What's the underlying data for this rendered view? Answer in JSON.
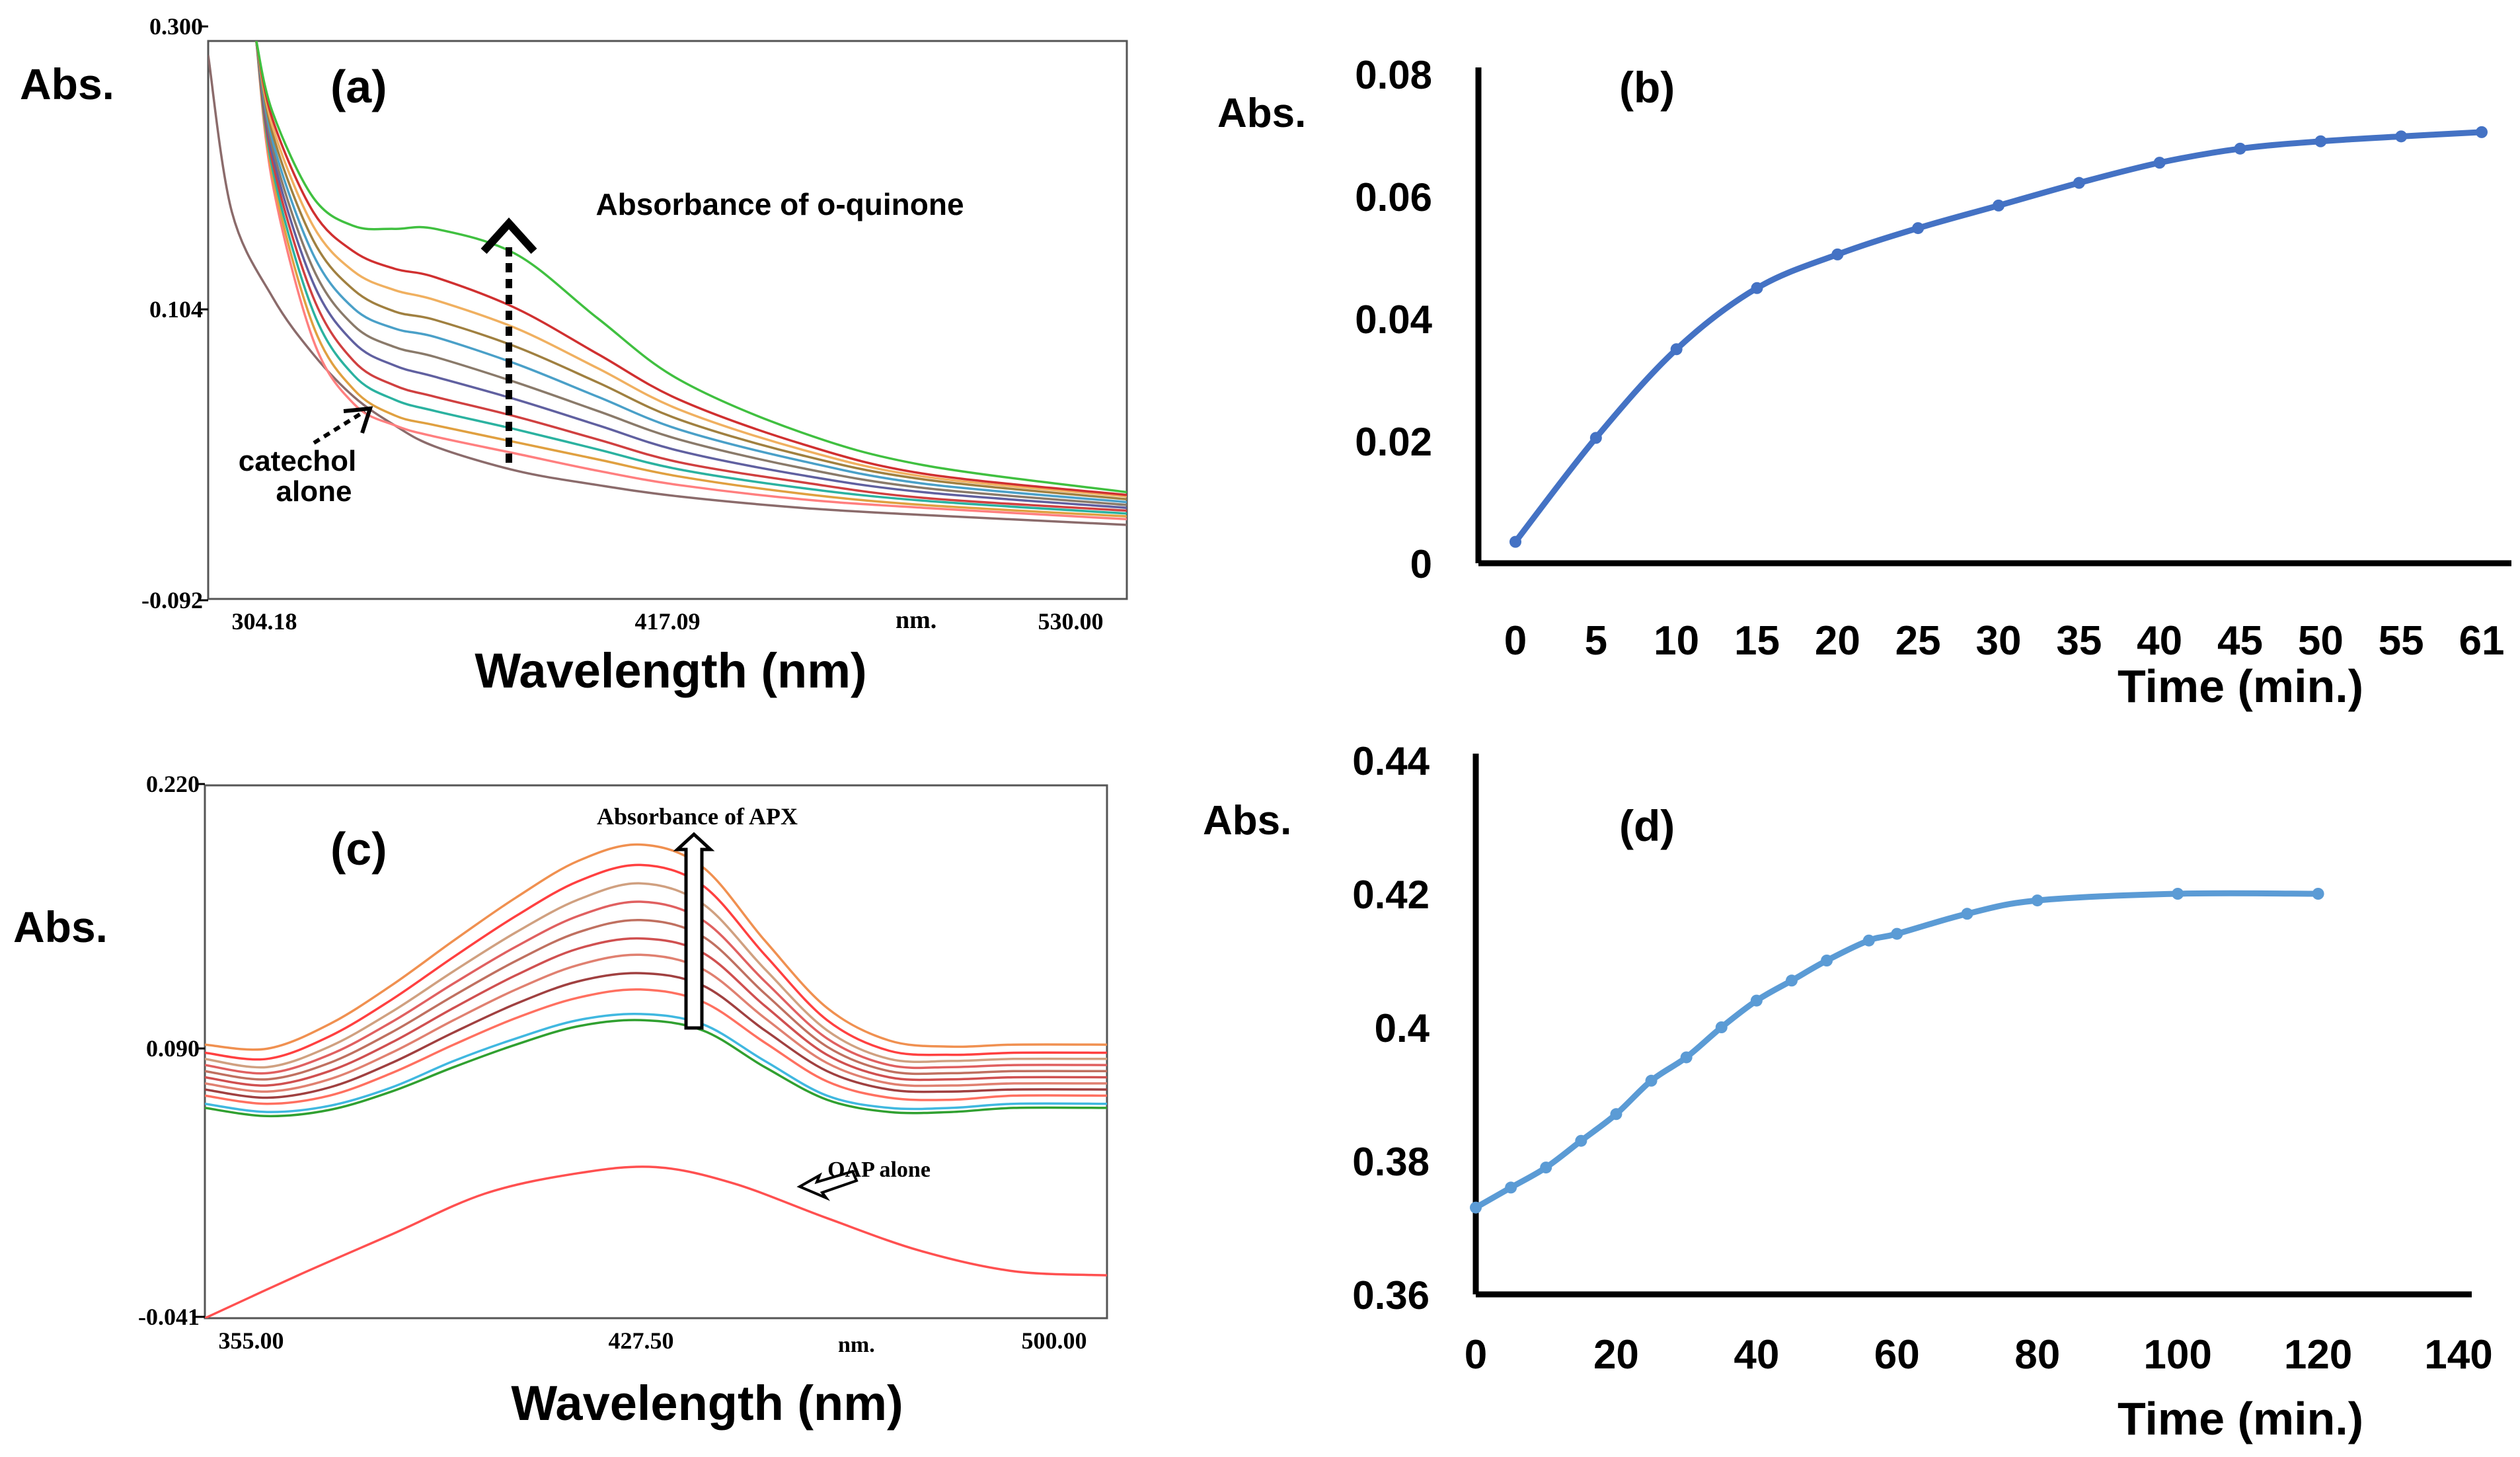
{
  "panels": {
    "a": {
      "label": "(a)",
      "ylabel": "Abs.",
      "xlabel": "Wavelength (nm)",
      "yticks": [
        "0.300",
        "0.104",
        "-0.092"
      ],
      "xticks": [
        "304.18",
        "417.09",
        "530.00"
      ],
      "unit": "nm.",
      "annotation": "Absorbance of o-quinone",
      "note_line1": "catechol",
      "note_line2": "alone"
    },
    "c": {
      "label": "(c)",
      "ylabel": "Abs.",
      "xlabel": "Wavelength (nm)",
      "yticks": [
        "0.220",
        "0.090",
        "-0.041"
      ],
      "xticks": [
        "355.00",
        "427.50",
        "500.00"
      ],
      "unit": "nm.",
      "annotation": "Absorbance of APX",
      "note": "OAP alone"
    }
  },
  "chart_data": [
    {
      "id": "a",
      "type": "line",
      "title": "(a)",
      "xlabel": "Wavelength (nm)",
      "ylabel": "Abs.",
      "xlim": [
        304.18,
        530.0
      ],
      "ylim": [
        -0.092,
        0.3
      ],
      "series": [
        {
          "name": "catechol alone",
          "color": "#8b6b6b",
          "x": [
            304.18,
            310,
            320,
            330,
            340,
            350,
            360,
            380,
            400,
            420,
            450,
            480,
            530
          ],
          "y": [
            0.29,
            0.18,
            0.12,
            0.08,
            0.05,
            0.03,
            0.015,
            -0.002,
            -0.012,
            -0.02,
            -0.028,
            -0.033,
            -0.04
          ]
        },
        {
          "color": "#ff7f7f",
          "x": [
            316,
            320,
            330,
            340,
            350,
            360,
            380,
            400,
            420,
            450,
            480,
            530
          ],
          "y": [
            0.3,
            0.2,
            0.09,
            0.045,
            0.03,
            0.022,
            0.01,
            -0.002,
            -0.012,
            -0.022,
            -0.028,
            -0.036
          ]
        },
        {
          "color": "#e0a040",
          "x": [
            316,
            320,
            330,
            340,
            350,
            360,
            380,
            400,
            420,
            450,
            480,
            530
          ],
          "y": [
            0.3,
            0.205,
            0.1,
            0.055,
            0.037,
            0.03,
            0.018,
            0.006,
            -0.006,
            -0.018,
            -0.026,
            -0.034
          ]
        },
        {
          "color": "#2bb2a0",
          "x": [
            316,
            320,
            330,
            340,
            350,
            360,
            380,
            400,
            420,
            450,
            480,
            530
          ],
          "y": [
            0.3,
            0.21,
            0.11,
            0.065,
            0.048,
            0.04,
            0.027,
            0.013,
            -0.001,
            -0.014,
            -0.023,
            -0.032
          ]
        },
        {
          "color": "#d04040",
          "x": [
            316,
            320,
            330,
            340,
            350,
            360,
            380,
            400,
            420,
            450,
            480,
            530
          ],
          "y": [
            0.3,
            0.215,
            0.12,
            0.075,
            0.058,
            0.05,
            0.036,
            0.02,
            0.004,
            -0.01,
            -0.021,
            -0.03
          ]
        },
        {
          "color": "#6060a0",
          "x": [
            316,
            320,
            330,
            340,
            350,
            360,
            380,
            400,
            420,
            450,
            480,
            530
          ],
          "y": [
            0.3,
            0.22,
            0.13,
            0.088,
            0.072,
            0.064,
            0.048,
            0.03,
            0.012,
            -0.005,
            -0.017,
            -0.028
          ]
        },
        {
          "color": "#8a7a6a",
          "x": [
            316,
            320,
            330,
            340,
            350,
            360,
            380,
            400,
            420,
            450,
            480,
            530
          ],
          "y": [
            0.3,
            0.225,
            0.14,
            0.1,
            0.085,
            0.078,
            0.06,
            0.04,
            0.02,
            0.0,
            -0.014,
            -0.026
          ]
        },
        {
          "color": "#4aa0c8",
          "x": [
            316,
            320,
            330,
            340,
            350,
            360,
            380,
            400,
            420,
            450,
            480,
            530
          ],
          "y": [
            0.3,
            0.23,
            0.15,
            0.112,
            0.098,
            0.092,
            0.073,
            0.05,
            0.027,
            0.005,
            -0.011,
            -0.024
          ]
        },
        {
          "color": "#a08040",
          "x": [
            316,
            320,
            330,
            340,
            350,
            360,
            380,
            400,
            420,
            450,
            480,
            530
          ],
          "y": [
            0.3,
            0.235,
            0.16,
            0.125,
            0.11,
            0.104,
            0.085,
            0.06,
            0.034,
            0.009,
            -0.008,
            -0.022
          ]
        },
        {
          "color": "#f0b060",
          "x": [
            316,
            320,
            330,
            340,
            350,
            360,
            380,
            400,
            420,
            450,
            480,
            530
          ],
          "y": [
            0.3,
            0.24,
            0.17,
            0.138,
            0.125,
            0.118,
            0.098,
            0.07,
            0.041,
            0.013,
            -0.006,
            -0.02
          ]
        },
        {
          "color": "#d03030",
          "x": [
            316,
            320,
            330,
            340,
            350,
            360,
            380,
            400,
            420,
            450,
            480,
            530
          ],
          "y": [
            0.3,
            0.245,
            0.18,
            0.152,
            0.14,
            0.134,
            0.112,
            0.08,
            0.048,
            0.017,
            -0.004,
            -0.019
          ]
        },
        {
          "color": "#40c040",
          "x": [
            316,
            320,
            330,
            340,
            350,
            360,
            380,
            400,
            420,
            450,
            480,
            530
          ],
          "y": [
            0.3,
            0.25,
            0.19,
            0.17,
            0.168,
            0.168,
            0.15,
            0.105,
            0.062,
            0.025,
            0.002,
            -0.017
          ]
        }
      ],
      "annotations": [
        "Absorbance of o-quinone",
        "catechol alone"
      ]
    },
    {
      "id": "b",
      "type": "line",
      "title": "(b)",
      "xlabel": "Time (min.)",
      "ylabel": "Abs.",
      "categories": [
        "0",
        "5",
        "10",
        "15",
        "20",
        "25",
        "30",
        "35",
        "40",
        "45",
        "50",
        "55",
        "61"
      ],
      "values": [
        0.0035,
        0.0205,
        0.035,
        0.045,
        0.0505,
        0.0548,
        0.0585,
        0.0622,
        0.0655,
        0.0678,
        0.069,
        0.0698,
        0.0705
      ],
      "ylim": [
        0,
        0.08
      ],
      "yticks": [
        "0",
        "0.02",
        "0.04",
        "0.06",
        "0.08"
      ],
      "color": "#4472c4"
    },
    {
      "id": "c",
      "type": "line",
      "title": "(c)",
      "xlabel": "Wavelength (nm)",
      "ylabel": "Abs.",
      "xlim": [
        355.0,
        500.0
      ],
      "ylim": [
        -0.041,
        0.22
      ],
      "series": [
        {
          "name": "OAP alone",
          "color": "#ff5050",
          "x": [
            355,
            370,
            385,
            400,
            415,
            427.5,
            440,
            455,
            470,
            485,
            500
          ],
          "y": [
            -0.041,
            -0.02,
            0.0,
            0.02,
            0.03,
            0.033,
            0.025,
            0.008,
            -0.008,
            -0.018,
            -0.02
          ]
        },
        {
          "color": "#30a030",
          "x": [
            355,
            365,
            375,
            385,
            395,
            405,
            415,
            425,
            435,
            445,
            455,
            465,
            475,
            485,
            500
          ],
          "y": [
            0.062,
            0.058,
            0.061,
            0.07,
            0.082,
            0.093,
            0.102,
            0.105,
            0.1,
            0.082,
            0.066,
            0.06,
            0.06,
            0.062,
            0.062
          ]
        },
        {
          "color": "#40b8e0",
          "x": [
            355,
            365,
            375,
            385,
            395,
            405,
            415,
            425,
            435,
            445,
            455,
            465,
            475,
            485,
            500
          ],
          "y": [
            0.064,
            0.06,
            0.063,
            0.072,
            0.085,
            0.096,
            0.105,
            0.108,
            0.103,
            0.085,
            0.068,
            0.062,
            0.062,
            0.064,
            0.064
          ]
        },
        {
          "color": "#ff7060",
          "x": [
            355,
            365,
            375,
            385,
            395,
            405,
            415,
            425,
            435,
            445,
            455,
            465,
            475,
            485,
            500
          ],
          "y": [
            0.068,
            0.064,
            0.068,
            0.079,
            0.093,
            0.106,
            0.116,
            0.12,
            0.114,
            0.094,
            0.075,
            0.067,
            0.066,
            0.068,
            0.068
          ]
        },
        {
          "color": "#a04040",
          "x": [
            355,
            365,
            375,
            385,
            395,
            405,
            415,
            425,
            435,
            445,
            455,
            465,
            475,
            485,
            500
          ],
          "y": [
            0.071,
            0.067,
            0.072,
            0.084,
            0.099,
            0.113,
            0.124,
            0.128,
            0.122,
            0.1,
            0.08,
            0.071,
            0.07,
            0.071,
            0.071
          ]
        },
        {
          "color": "#e08070",
          "x": [
            355,
            365,
            375,
            385,
            395,
            405,
            415,
            425,
            435,
            445,
            455,
            465,
            475,
            485,
            500
          ],
          "y": [
            0.074,
            0.07,
            0.076,
            0.089,
            0.105,
            0.12,
            0.132,
            0.137,
            0.13,
            0.106,
            0.084,
            0.074,
            0.073,
            0.074,
            0.074
          ]
        },
        {
          "color": "#d05050",
          "x": [
            355,
            365,
            375,
            385,
            395,
            405,
            415,
            425,
            435,
            445,
            455,
            465,
            475,
            485,
            500
          ],
          "y": [
            0.077,
            0.073,
            0.08,
            0.094,
            0.111,
            0.127,
            0.14,
            0.145,
            0.138,
            0.112,
            0.088,
            0.077,
            0.076,
            0.077,
            0.077
          ]
        },
        {
          "color": "#c07060",
          "x": [
            355,
            365,
            375,
            385,
            395,
            405,
            415,
            425,
            435,
            445,
            455,
            465,
            475,
            485,
            500
          ],
          "y": [
            0.08,
            0.076,
            0.084,
            0.099,
            0.117,
            0.134,
            0.148,
            0.154,
            0.146,
            0.118,
            0.092,
            0.08,
            0.079,
            0.08,
            0.08
          ]
        },
        {
          "color": "#e06060",
          "x": [
            355,
            365,
            375,
            385,
            395,
            405,
            415,
            425,
            435,
            445,
            455,
            465,
            475,
            485,
            500
          ],
          "y": [
            0.083,
            0.079,
            0.088,
            0.104,
            0.123,
            0.141,
            0.156,
            0.163,
            0.154,
            0.124,
            0.096,
            0.083,
            0.082,
            0.083,
            0.083
          ]
        },
        {
          "color": "#d0a080",
          "x": [
            355,
            365,
            375,
            385,
            395,
            405,
            415,
            425,
            435,
            445,
            455,
            465,
            475,
            485,
            500
          ],
          "y": [
            0.086,
            0.082,
            0.092,
            0.109,
            0.129,
            0.148,
            0.164,
            0.172,
            0.162,
            0.13,
            0.1,
            0.086,
            0.085,
            0.086,
            0.086
          ]
        },
        {
          "color": "#ff4040",
          "x": [
            355,
            365,
            375,
            385,
            395,
            405,
            415,
            425,
            435,
            445,
            455,
            465,
            475,
            485,
            500
          ],
          "y": [
            0.089,
            0.086,
            0.097,
            0.115,
            0.136,
            0.156,
            0.173,
            0.181,
            0.171,
            0.137,
            0.105,
            0.09,
            0.088,
            0.089,
            0.089
          ]
        },
        {
          "color": "#f09050",
          "x": [
            355,
            365,
            375,
            385,
            395,
            405,
            415,
            425,
            435,
            445,
            455,
            465,
            475,
            485,
            500
          ],
          "y": [
            0.093,
            0.091,
            0.103,
            0.122,
            0.144,
            0.165,
            0.183,
            0.191,
            0.18,
            0.144,
            0.111,
            0.095,
            0.092,
            0.093,
            0.093
          ]
        }
      ],
      "annotations": [
        "Absorbance of APX",
        "OAP alone"
      ]
    },
    {
      "id": "d",
      "type": "line",
      "title": "(d)",
      "xlabel": "Time (min.)",
      "ylabel": "Abs.",
      "x": [
        0,
        5,
        10,
        15,
        20,
        25,
        30,
        35,
        40,
        45,
        50,
        56,
        60,
        70,
        80,
        100,
        120
      ],
      "values": [
        0.373,
        0.376,
        0.379,
        0.383,
        0.387,
        0.392,
        0.3955,
        0.4,
        0.404,
        0.407,
        0.41,
        0.413,
        0.414,
        0.417,
        0.419,
        0.42,
        0.42
      ],
      "xlim": [
        0,
        140
      ],
      "ylim": [
        0.36,
        0.44
      ],
      "xticks": [
        "0",
        "20",
        "40",
        "60",
        "80",
        "100",
        "120",
        "140"
      ],
      "yticks": [
        "0.36",
        "0.38",
        "0.4",
        "0.42",
        "0.44"
      ],
      "color": "#5b9bd5"
    }
  ]
}
